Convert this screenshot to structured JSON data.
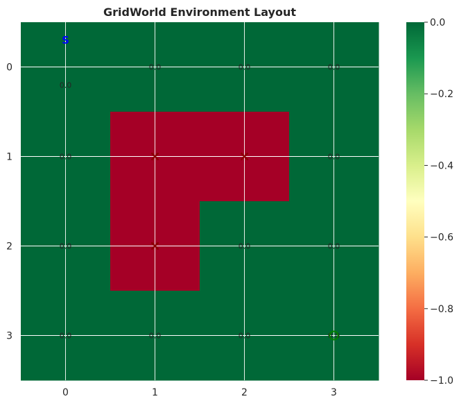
{
  "chart_data": {
    "type": "heatmap",
    "title": "GridWorld Environment Layout",
    "xlabel": "",
    "ylabel": "",
    "x_ticks": [
      "0",
      "1",
      "2",
      "3"
    ],
    "y_ticks": [
      "0",
      "1",
      "2",
      "3"
    ],
    "grid": true,
    "values": [
      [
        0,
        0,
        0,
        0
      ],
      [
        0,
        -1,
        -1,
        0
      ],
      [
        0,
        -1,
        0,
        0
      ],
      [
        0,
        0,
        0,
        0
      ]
    ],
    "cell_labels": [
      [
        "0.0",
        "0.0",
        "0.0",
        "0.0"
      ],
      [
        "0.0",
        "",
        "",
        "0.0"
      ],
      [
        "0.0",
        "",
        "0.0",
        "0.0"
      ],
      [
        "0.0",
        "0.0",
        "0.0",
        "0.0"
      ]
    ],
    "obstacles": [
      [
        1,
        1
      ],
      [
        1,
        2
      ],
      [
        2,
        1
      ]
    ],
    "start": {
      "row": 0,
      "col": 0,
      "label": "S"
    },
    "goal": {
      "row": 3,
      "col": 3
    },
    "colorbar": {
      "min": -1.0,
      "max": 0.0,
      "ticks": [
        "0.0",
        "−0.2",
        "−0.4",
        "−0.6",
        "−0.8",
        "−1.0"
      ],
      "tick_values": [
        0.0,
        -0.2,
        -0.4,
        -0.6,
        -0.8,
        -1.0
      ],
      "colormap": "RdYlGn"
    },
    "colors": {
      "high": "#006837",
      "low": "#a50026",
      "start_marker": "#0000ff",
      "obstacle_marker": "#8b0000",
      "goal_marker": "#008000",
      "grid_line": "#ffffff",
      "text": "#262626"
    }
  }
}
